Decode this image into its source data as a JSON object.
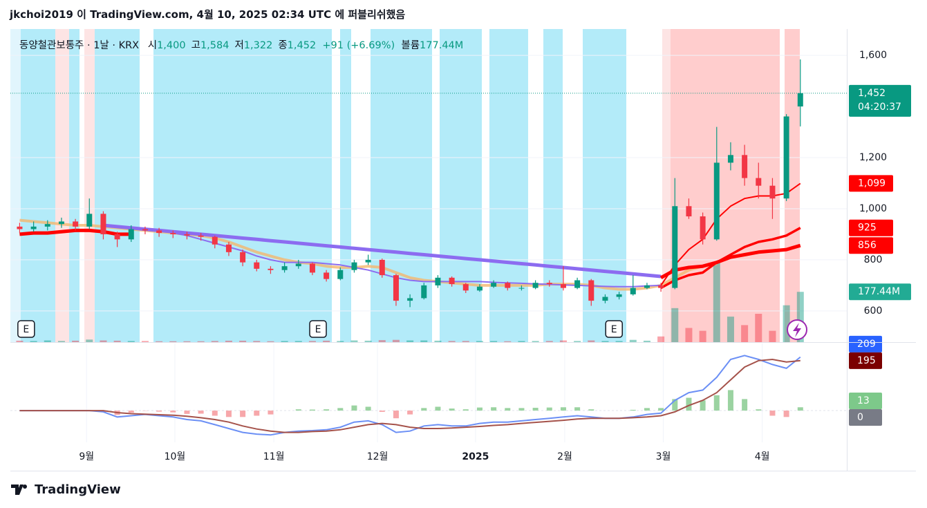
{
  "header": {
    "publisher": "jkchoi2019 이 TradingView.com, 4월 10, 2025 02:34 UTC 에 퍼블리쉬했음"
  },
  "footer": {
    "brand": "TradingView"
  },
  "chart_data": [
    {
      "type": "candlestick",
      "symbol": "동양철관보통주 · 1날 · KRX",
      "ohlc_legend": [
        {
          "label": "시",
          "value": "1,400"
        },
        {
          "label": "고",
          "value": "1,584"
        },
        {
          "label": "저",
          "value": "1,322"
        },
        {
          "label": "종",
          "value": "1,452"
        }
      ],
      "change": "+91 (+6.69%)",
      "volume_name": "볼륨",
      "volume_value": "177.44M",
      "x": [
        0,
        3,
        6,
        9,
        12,
        15,
        18,
        21,
        24,
        27,
        30,
        33,
        36,
        39,
        42,
        45,
        48,
        51,
        54,
        57,
        60,
        63,
        66,
        69,
        72,
        75,
        78,
        81,
        84,
        87,
        90,
        93,
        96,
        99,
        102,
        105,
        108,
        111,
        114,
        117,
        120,
        123,
        126,
        129,
        132,
        135,
        138,
        141,
        144,
        147,
        150,
        153,
        156,
        159,
        162,
        165,
        168
      ],
      "xlim": [
        -2,
        178
      ],
      "xticks": [
        {
          "value": 14.4,
          "label": "9월"
        },
        {
          "value": 33.4,
          "label": "10월"
        },
        {
          "value": 54.7,
          "label": "11월"
        },
        {
          "value": 77,
          "label": "12월"
        },
        {
          "value": 98.1,
          "label": "2025"
        },
        {
          "value": 117.3,
          "label": "2월"
        },
        {
          "value": 138.5,
          "label": "3월"
        },
        {
          "value": 159.8,
          "label": "4월"
        }
      ],
      "ylim": [
        478,
        1703
      ],
      "yticks": [
        600,
        800,
        {
          "value": 1000,
          "label": "1,000"
        },
        {
          "value": 1200,
          "label": "1,200"
        },
        {
          "value": 1600,
          "label": "1,600"
        }
      ],
      "up_color": "#089981",
      "down_color": "#f23645",
      "ohlc": [
        [
          930,
          945,
          905,
          920
        ],
        [
          920,
          950,
          910,
          930
        ],
        [
          930,
          955,
          915,
          940
        ],
        [
          940,
          965,
          925,
          950
        ],
        [
          950,
          960,
          915,
          930
        ],
        [
          930,
          1040,
          920,
          980
        ],
        [
          980,
          990,
          880,
          900
        ],
        [
          900,
          910,
          850,
          880
        ],
        [
          880,
          935,
          870,
          920
        ],
        [
          920,
          930,
          900,
          915
        ],
        [
          915,
          925,
          890,
          905
        ],
        [
          905,
          915,
          885,
          900
        ],
        [
          900,
          910,
          880,
          895
        ],
        [
          895,
          905,
          875,
          890
        ],
        [
          890,
          895,
          845,
          860
        ],
        [
          860,
          870,
          815,
          830
        ],
        [
          830,
          840,
          775,
          790
        ],
        [
          790,
          800,
          755,
          765
        ],
        [
          765,
          775,
          745,
          760
        ],
        [
          760,
          790,
          750,
          775
        ],
        [
          775,
          800,
          765,
          785
        ],
        [
          785,
          790,
          740,
          750
        ],
        [
          750,
          760,
          715,
          725
        ],
        [
          725,
          770,
          720,
          760
        ],
        [
          760,
          800,
          750,
          790
        ],
        [
          790,
          820,
          780,
          800
        ],
        [
          800,
          805,
          730,
          740
        ],
        [
          740,
          745,
          620,
          640
        ],
        [
          640,
          665,
          615,
          650
        ],
        [
          650,
          710,
          645,
          700
        ],
        [
          700,
          740,
          690,
          730
        ],
        [
          730,
          735,
          695,
          705
        ],
        [
          705,
          710,
          670,
          680
        ],
        [
          680,
          705,
          675,
          695
        ],
        [
          695,
          720,
          690,
          710
        ],
        [
          710,
          715,
          680,
          690
        ],
        [
          690,
          700,
          680,
          690
        ],
        [
          690,
          720,
          685,
          710
        ],
        [
          710,
          720,
          695,
          705
        ],
        [
          705,
          775,
          680,
          690
        ],
        [
          690,
          730,
          685,
          720
        ],
        [
          720,
          725,
          620,
          640
        ],
        [
          640,
          665,
          630,
          655
        ],
        [
          655,
          675,
          645,
          665
        ],
        [
          665,
          740,
          660,
          690
        ],
        [
          690,
          710,
          685,
          700
        ],
        [
          700,
          710,
          675,
          690
        ],
        [
          690,
          1120,
          685,
          1010
        ],
        [
          1010,
          1040,
          960,
          970
        ],
        [
          970,
          985,
          860,
          880
        ],
        [
          880,
          1320,
          875,
          1180
        ],
        [
          1180,
          1260,
          1150,
          1210
        ],
        [
          1210,
          1250,
          1090,
          1120
        ],
        [
          1120,
          1180,
          1040,
          1090
        ],
        [
          1090,
          1120,
          960,
          1040
        ],
        [
          1040,
          1370,
          1030,
          1361
        ],
        [
          1400,
          1584,
          1322,
          1452
        ]
      ],
      "last_label": "1,452",
      "countdown": "04:20:37",
      "volume": [
        5,
        4,
        6,
        4,
        5,
        9,
        6,
        5,
        4,
        4,
        3,
        3,
        3,
        3,
        4,
        5,
        5,
        4,
        3,
        4,
        4,
        4,
        5,
        4,
        6,
        5,
        7,
        8,
        6,
        6,
        5,
        4,
        4,
        4,
        4,
        3,
        4,
        4,
        4,
        6,
        4,
        6,
        4,
        4,
        8,
        5,
        20,
        120,
        50,
        40,
        280,
        90,
        60,
        100,
        40,
        130,
        177.44
      ],
      "volume_last_label": "177.44M",
      "series": [
        {
          "color": "#f4b66e",
          "width": 4,
          "values": [
            955,
            950,
            945,
            940,
            935,
            935,
            930,
            925,
            920,
            915,
            910,
            905,
            900,
            895,
            885,
            870,
            850,
            830,
            815,
            800,
            790,
            785,
            775,
            770,
            770,
            775,
            770,
            750,
            730,
            720,
            715,
            710,
            705,
            700,
            700,
            700,
            700,
            700,
            705,
            705,
            705,
            700,
            690,
            685,
            685,
            690,
            700,
            730,
            760,
            775,
            785,
            null,
            null,
            null,
            null,
            null,
            null
          ]
        },
        {
          "color": "#8c6cf0",
          "width": 5,
          "values": [
            null,
            null,
            null,
            null,
            null,
            null,
            935,
            930,
            925,
            920,
            915,
            910,
            905,
            900,
            895,
            890,
            885,
            880,
            875,
            870,
            865,
            860,
            855,
            850,
            845,
            840,
            835,
            830,
            825,
            820,
            815,
            810,
            805,
            800,
            795,
            790,
            785,
            780,
            775,
            770,
            765,
            760,
            755,
            750,
            745,
            740,
            735,
            null,
            null,
            null,
            null,
            null,
            null,
            null,
            null,
            null,
            null
          ]
        },
        {
          "color": "#8c6cf0",
          "width": 2,
          "values": [
            null,
            null,
            null,
            null,
            null,
            null,
            935,
            930,
            925,
            920,
            915,
            905,
            895,
            880,
            865,
            850,
            835,
            815,
            800,
            790,
            790,
            790,
            785,
            780,
            770,
            760,
            745,
            730,
            720,
            715,
            715,
            715,
            715,
            715,
            712,
            710,
            708,
            706,
            704,
            702,
            700,
            698,
            696,
            695,
            695,
            698,
            700,
            null,
            null,
            null,
            null,
            null,
            null,
            null,
            null,
            null,
            null
          ]
        },
        {
          "color": "#ff0000",
          "width": 5,
          "values": [
            900,
            905,
            905,
            910,
            915,
            915,
            910,
            900,
            900,
            null,
            null,
            null,
            null,
            null,
            null,
            null,
            null,
            null,
            null,
            null,
            null,
            null,
            null,
            null,
            null,
            null,
            null,
            null,
            null,
            null,
            null,
            null,
            null,
            null,
            null,
            null,
            null,
            null,
            null,
            null,
            null,
            null,
            null,
            null,
            null,
            null,
            730,
            760,
            770,
            775,
            790,
            810,
            820,
            830,
            835,
            840,
            856
          ],
          "last_label": "856"
        },
        {
          "color": "#ff0000",
          "width": 3.5,
          "values": [
            null,
            null,
            null,
            null,
            null,
            null,
            null,
            null,
            null,
            null,
            null,
            null,
            null,
            null,
            null,
            null,
            null,
            null,
            null,
            null,
            null,
            null,
            null,
            null,
            null,
            null,
            null,
            null,
            null,
            null,
            null,
            null,
            null,
            null,
            null,
            null,
            null,
            null,
            null,
            null,
            null,
            null,
            null,
            null,
            null,
            null,
            690,
            720,
            740,
            750,
            790,
            820,
            850,
            870,
            880,
            895,
            925
          ],
          "last_label": "925"
        },
        {
          "color": "#ff0000",
          "width": 2,
          "values": [
            null,
            null,
            null,
            null,
            null,
            null,
            null,
            null,
            null,
            null,
            null,
            null,
            null,
            null,
            null,
            null,
            null,
            null,
            null,
            null,
            null,
            null,
            null,
            null,
            null,
            null,
            null,
            null,
            null,
            null,
            null,
            null,
            null,
            null,
            null,
            null,
            null,
            null,
            null,
            null,
            null,
            null,
            null,
            null,
            null,
            null,
            700,
            780,
            840,
            880,
            960,
            1010,
            1040,
            1050,
            1050,
            1060,
            1099
          ],
          "last_label": "1,099"
        }
      ],
      "events": [
        {
          "x": 1.4,
          "label": "E"
        },
        {
          "x": 64.2,
          "label": "E"
        },
        {
          "x": 127.9,
          "label": "E"
        }
      ]
    },
    {
      "type": "macd",
      "ylim": [
        -124,
        262
      ],
      "yticks": [
        0
      ],
      "series": [
        {
          "color": "#6b8ff5",
          "badge_color": "#2962ff",
          "values": [
            0,
            0,
            0,
            0,
            0,
            0,
            -5,
            -25,
            -20,
            -15,
            -20,
            -25,
            -35,
            -40,
            -55,
            -70,
            -85,
            -92,
            -95,
            -85,
            -80,
            -78,
            -75,
            -65,
            -45,
            -40,
            -55,
            -85,
            -80,
            -60,
            -55,
            -60,
            -60,
            -50,
            -45,
            -45,
            -40,
            -35,
            -30,
            -25,
            -20,
            -25,
            -30,
            -30,
            -25,
            -15,
            -10,
            40,
            70,
            80,
            130,
            200,
            215,
            200,
            180,
            165,
            209
          ],
          "last_label": "209"
        },
        {
          "color": "#a5524a",
          "badge_color": "#7b0000",
          "values": [
            0,
            0,
            0,
            0,
            0,
            0,
            0,
            -8,
            -12,
            -14,
            -16,
            -18,
            -22,
            -28,
            -35,
            -45,
            -60,
            -72,
            -80,
            -85,
            -85,
            -82,
            -80,
            -75,
            -65,
            -55,
            -50,
            -55,
            -65,
            -70,
            -70,
            -68,
            -65,
            -62,
            -58,
            -55,
            -50,
            -46,
            -42,
            -38,
            -33,
            -30,
            -30,
            -30,
            -28,
            -25,
            -20,
            -5,
            20,
            40,
            70,
            120,
            170,
            195,
            200,
            190,
            195
          ],
          "last_label": "195"
        }
      ],
      "histogram": {
        "up_color": "#9bd3a1",
        "down_color": "#f7a7aa",
        "values": [
          0,
          0,
          0,
          0,
          0,
          0,
          -5,
          -17,
          -8,
          -1,
          -4,
          -7,
          -13,
          -12,
          -20,
          -25,
          -25,
          -20,
          -15,
          0,
          5,
          4,
          5,
          10,
          20,
          15,
          -5,
          -30,
          -15,
          10,
          15,
          8,
          5,
          12,
          13,
          10,
          10,
          11,
          12,
          13,
          13,
          5,
          0,
          0,
          3,
          10,
          10,
          45,
          50,
          40,
          60,
          80,
          45,
          5,
          -20,
          -25,
          13
        ],
        "last_label": "13"
      }
    }
  ]
}
